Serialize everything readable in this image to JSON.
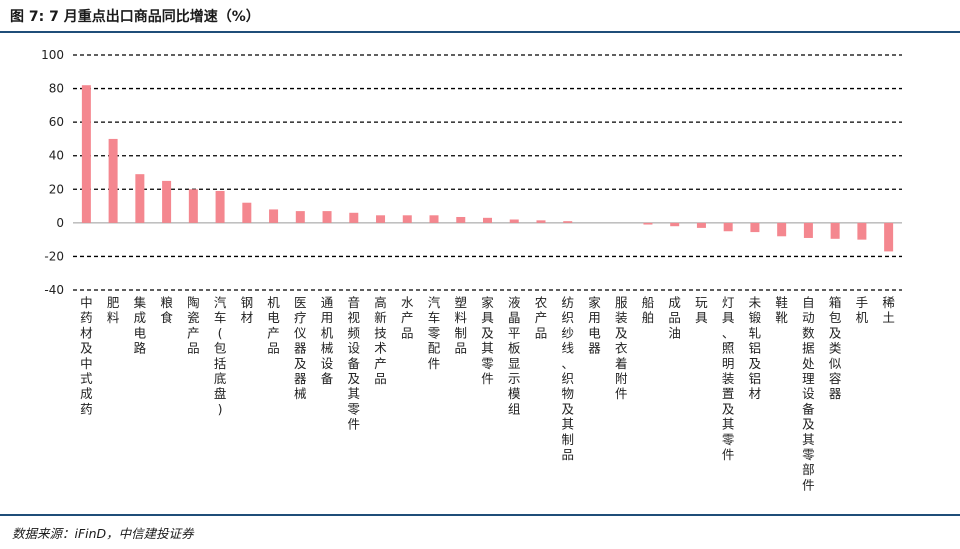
{
  "header": {
    "title": "图 7: 7 月重点出口商品同比增速（%）"
  },
  "footer": {
    "source": "数据来源：iFinD，中信建投证券"
  },
  "colors": {
    "bar": "#f4878f",
    "rule": "#1f4e79",
    "grid": "#000000"
  },
  "chart_data": {
    "type": "bar",
    "title": "图 7: 7 月重点出口商品同比增速（%）",
    "xlabel": "",
    "ylabel": "",
    "ylim": [
      -40,
      100
    ],
    "yticks": [
      100,
      80,
      60,
      40,
      20,
      0,
      -20,
      -40
    ],
    "grid": "horizontal-dashed",
    "legend": "none",
    "categories": [
      "中药材及中式成药",
      "肥料",
      "集成电路",
      "粮食",
      "陶瓷产品",
      "汽车(包括底盘)",
      "钢材",
      "机电产品",
      "医疗仪器及器械",
      "通用机械设备",
      "音视频设备及其零件",
      "高新技术产品",
      "水产品",
      "汽车零配件",
      "塑料制品",
      "家具及其零件",
      "液晶平板显示模组",
      "农产品",
      "纺织纱线、织物及其制品",
      "家用电器",
      "服装及衣着附件",
      "船舶",
      "成品油",
      "玩具",
      "灯具、照明装置及其零件",
      "未锻轧铝及铝材",
      "鞋靴",
      "自动数据处理设备及其零部件",
      "箱包及类似容器",
      "手机",
      "稀土"
    ],
    "values": [
      82,
      50,
      29,
      25,
      20,
      19,
      12,
      8,
      7,
      7,
      6,
      4.5,
      4.5,
      4.5,
      3.5,
      3,
      2,
      1.5,
      1,
      0,
      0,
      -1,
      -2,
      -3,
      -5,
      -5.5,
      -8,
      -9,
      -9.5,
      -10,
      -17
    ]
  }
}
